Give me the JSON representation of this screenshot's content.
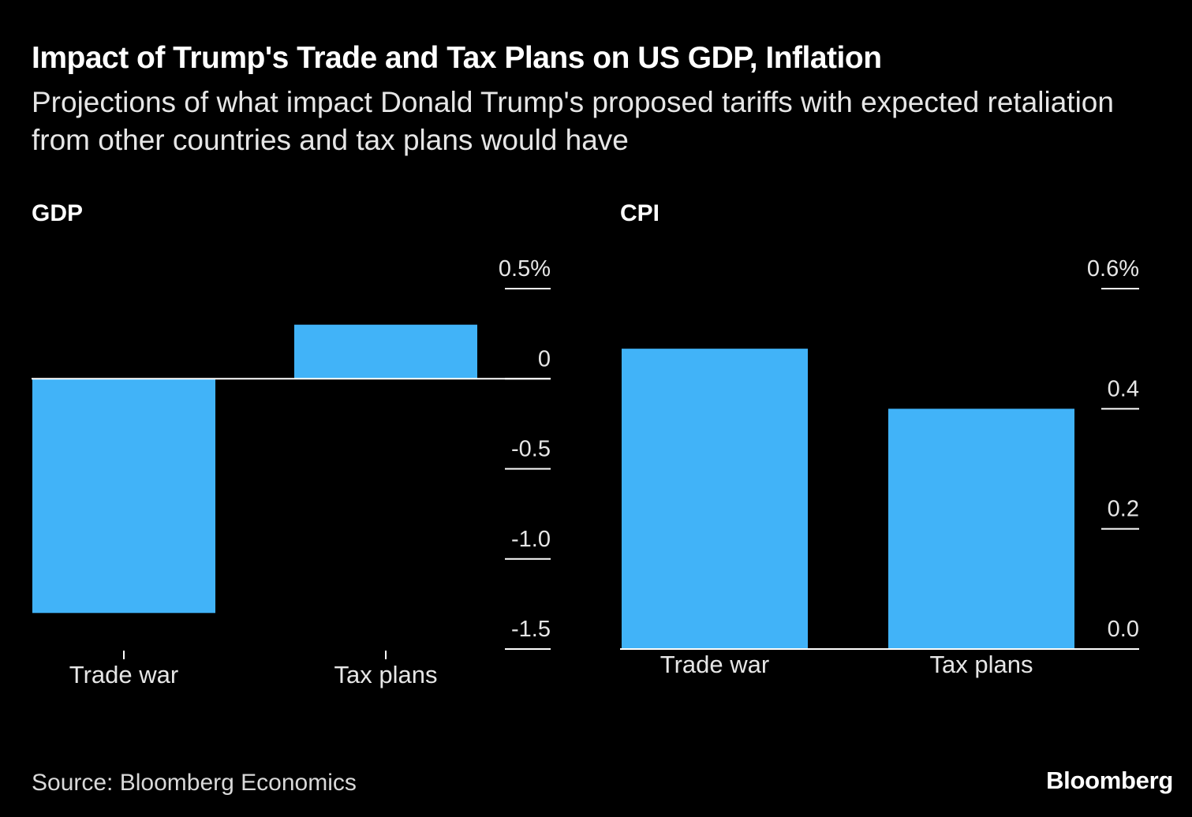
{
  "title": "Impact of Trump's Trade and Tax Plans on US GDP, Inflation",
  "subtitle": "Projections of what impact Donald Trump's proposed tariffs with expected retaliation from other countries and tax plans would have",
  "source": "Source: Bloomberg Economics",
  "brand": "Bloomberg",
  "colors": {
    "bar": "#41b3f8",
    "background": "#000000",
    "text": "#ffffff",
    "axis": "#ffffff"
  },
  "chart_data": [
    {
      "type": "bar",
      "title": "GDP",
      "categories": [
        "Trade war",
        "Tax plans"
      ],
      "values": [
        -1.3,
        0.3
      ],
      "unit": "%",
      "ylim": [
        -1.5,
        0.5
      ],
      "yticks": [
        0.5,
        0,
        -0.5,
        -1.0,
        -1.5
      ],
      "ytick_labels": [
        "0.5%",
        "0",
        "-0.5",
        "-1.0",
        "-1.5"
      ],
      "y_axis_position": "right",
      "grid": false
    },
    {
      "type": "bar",
      "title": "CPI",
      "categories": [
        "Trade war",
        "Tax plans"
      ],
      "values": [
        0.5,
        0.4
      ],
      "unit": "%",
      "ylim": [
        0.0,
        0.6
      ],
      "yticks": [
        0.6,
        0.4,
        0.2,
        0.0
      ],
      "ytick_labels": [
        "0.6%",
        "0.4",
        "0.2",
        "0.0"
      ],
      "y_axis_position": "right",
      "grid": false
    }
  ]
}
